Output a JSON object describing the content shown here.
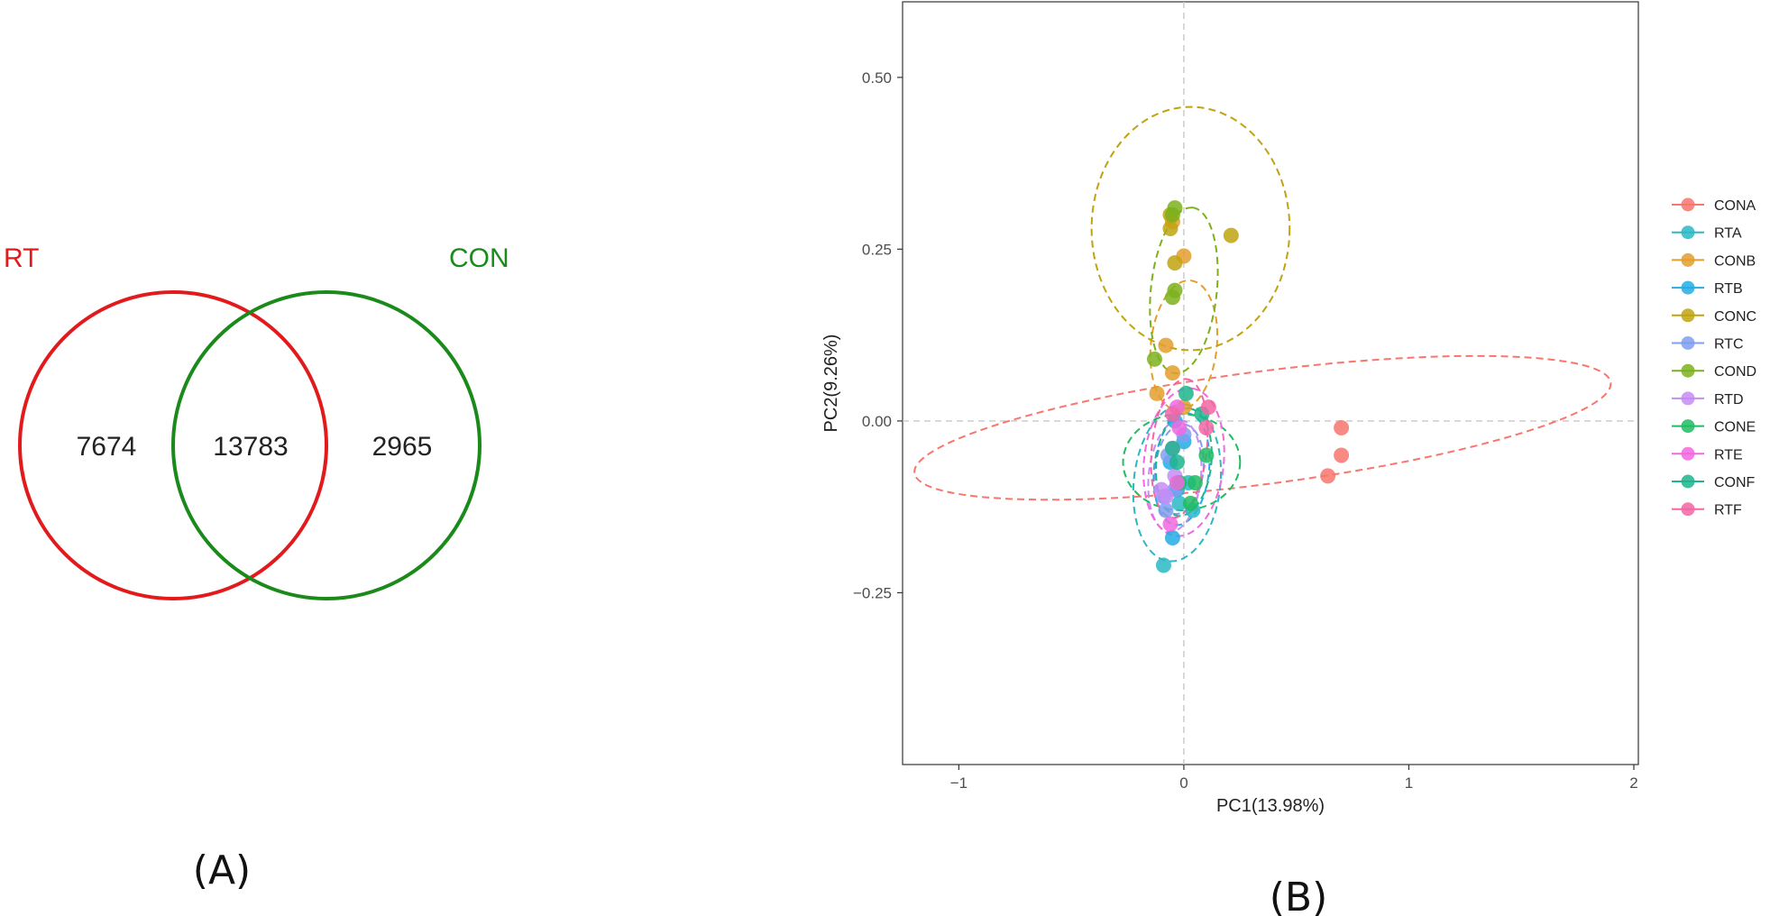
{
  "chart_data": [
    {
      "type": "venn",
      "panel_label": "(A)",
      "sets": [
        {
          "name": "RT",
          "color": "#e31a1c"
        },
        {
          "name": "CON",
          "color": "#1a8a1a"
        }
      ],
      "counts": {
        "RT_only": "7674",
        "both": "13783",
        "CON_only": "2965"
      }
    },
    {
      "type": "scatter",
      "panel_label": "(B)",
      "xlabel": "PC1(13.98%)",
      "ylabel": "PC2(9.26%)",
      "xlim": [
        -1.25,
        2.02
      ],
      "ylim": [
        -0.5,
        0.61
      ],
      "xticks": [
        {
          "v": -1,
          "label": "−1"
        },
        {
          "v": 0,
          "label": "0"
        },
        {
          "v": 1,
          "label": "1"
        },
        {
          "v": 2,
          "label": "2"
        }
      ],
      "yticks": [
        {
          "v": 0.5,
          "label": "0.50"
        },
        {
          "v": 0.25,
          "label": "0.25"
        },
        {
          "v": 0,
          "label": "0.00"
        },
        {
          "v": -0.25,
          "label": "−0.25"
        }
      ],
      "reference_lines": {
        "x": 0,
        "y": 0
      },
      "legend_position": "right",
      "series": [
        {
          "name": "CONA",
          "color": "#f8766d",
          "points": [
            [
              0.7,
              -0.01
            ],
            [
              0.7,
              -0.05
            ],
            [
              0.64,
              -0.08
            ]
          ],
          "ellipse": {
            "cx": 0.35,
            "cy": -0.01,
            "rx": 1.56,
            "ry": 0.082,
            "angle": -7.4
          }
        },
        {
          "name": "RTA",
          "color": "#2ab8c4",
          "points": [
            [
              -0.02,
              -0.12
            ],
            [
              0.04,
              -0.13
            ],
            [
              -0.09,
              -0.21
            ],
            [
              0.02,
              -0.09
            ]
          ],
          "ellipse": {
            "cx": -0.03,
            "cy": -0.09,
            "rx": 0.35,
            "ry": 0.063,
            "angle": -84
          }
        },
        {
          "name": "CONB",
          "color": "#e39e2c",
          "points": [
            [
              -0.05,
              0.29
            ],
            [
              0.0,
              0.24
            ],
            [
              -0.08,
              0.11
            ],
            [
              -0.05,
              0.07
            ],
            [
              -0.12,
              0.04
            ],
            [
              0.0,
              0.02
            ]
          ],
          "ellipse": {
            "cx": 0.0,
            "cy": 0.11,
            "rx": 0.29,
            "ry": 0.048,
            "angle": -84
          }
        },
        {
          "name": "RTB",
          "color": "#23ace4",
          "points": [
            [
              -0.03,
              -0.1
            ],
            [
              -0.04,
              0.0
            ],
            [
              0.0,
              -0.03
            ],
            [
              -0.06,
              -0.06
            ],
            [
              -0.05,
              -0.17
            ]
          ],
          "ellipse": {
            "cx": -0.01,
            "cy": -0.07,
            "rx": 0.25,
            "ry": 0.04,
            "angle": -84
          }
        },
        {
          "name": "CONC",
          "color": "#bfa30f",
          "points": [
            [
              -0.06,
              0.28
            ],
            [
              0.21,
              0.27
            ],
            [
              -0.04,
              0.23
            ],
            [
              -0.06,
              0.3
            ]
          ],
          "ellipse": {
            "cx": 0.03,
            "cy": 0.28,
            "rx": 0.44,
            "ry": 0.177,
            "angle": 0
          }
        },
        {
          "name": "RTC",
          "color": "#7f9ff0",
          "points": [
            [
              -0.04,
              -0.1
            ],
            [
              -0.09,
              -0.11
            ],
            [
              -0.08,
              -0.13
            ],
            [
              -0.07,
              -0.05
            ],
            [
              0.0,
              -0.02
            ]
          ],
          "ellipse": {
            "cx": -0.02,
            "cy": -0.07,
            "rx": 0.2,
            "ry": 0.035,
            "angle": -84
          }
        },
        {
          "name": "COND",
          "color": "#7cb11d",
          "points": [
            [
              -0.04,
              0.31
            ],
            [
              -0.05,
              0.3
            ],
            [
              -0.04,
              0.19
            ],
            [
              -0.13,
              0.09
            ],
            [
              -0.05,
              0.18
            ]
          ],
          "ellipse": {
            "cx": 0.0,
            "cy": 0.19,
            "rx": 0.37,
            "ry": 0.048,
            "angle": -84
          }
        },
        {
          "name": "RTD",
          "color": "#c58cf6",
          "points": [
            [
              -0.08,
              -0.11
            ],
            [
              -0.04,
              -0.08
            ],
            [
              -0.1,
              -0.1
            ],
            [
              -0.05,
              -0.04
            ]
          ],
          "ellipse": {
            "cx": -0.04,
            "cy": -0.08,
            "rx": 0.25,
            "ry": 0.038,
            "angle": -84
          }
        },
        {
          "name": "CONE",
          "color": "#1fbc62",
          "points": [
            [
              0.1,
              -0.05
            ],
            [
              0.03,
              -0.12
            ],
            [
              0.05,
              -0.09
            ],
            [
              -0.02,
              -0.09
            ]
          ],
          "ellipse": {
            "cx": -0.01,
            "cy": -0.06,
            "rx": 0.26,
            "ry": 0.07,
            "angle": 0
          }
        },
        {
          "name": "RTE",
          "color": "#f168e0",
          "points": [
            [
              -0.02,
              -0.01
            ],
            [
              -0.03,
              0.02
            ],
            [
              -0.06,
              -0.15
            ],
            [
              -0.03,
              -0.09
            ]
          ],
          "ellipse": {
            "cx": 0.0,
            "cy": -0.06,
            "rx": 0.33,
            "ry": 0.058,
            "angle": -84
          }
        },
        {
          "name": "CONF",
          "color": "#1eb48e",
          "points": [
            [
              0.08,
              0.01
            ],
            [
              0.01,
              0.04
            ],
            [
              -0.05,
              -0.04
            ],
            [
              -0.03,
              -0.06
            ]
          ],
          "ellipse": {
            "cx": 0.0,
            "cy": -0.06,
            "rx": 0.24,
            "ry": 0.04,
            "angle": -84
          }
        },
        {
          "name": "RTF",
          "color": "#f365a3",
          "points": [
            [
              0.11,
              0.02
            ],
            [
              0.1,
              -0.01
            ],
            [
              -0.05,
              0.01
            ]
          ],
          "ellipse": {
            "cx": -0.02,
            "cy": -0.04,
            "rx": 0.31,
            "ry": 0.04,
            "angle": -84
          }
        }
      ]
    }
  ]
}
